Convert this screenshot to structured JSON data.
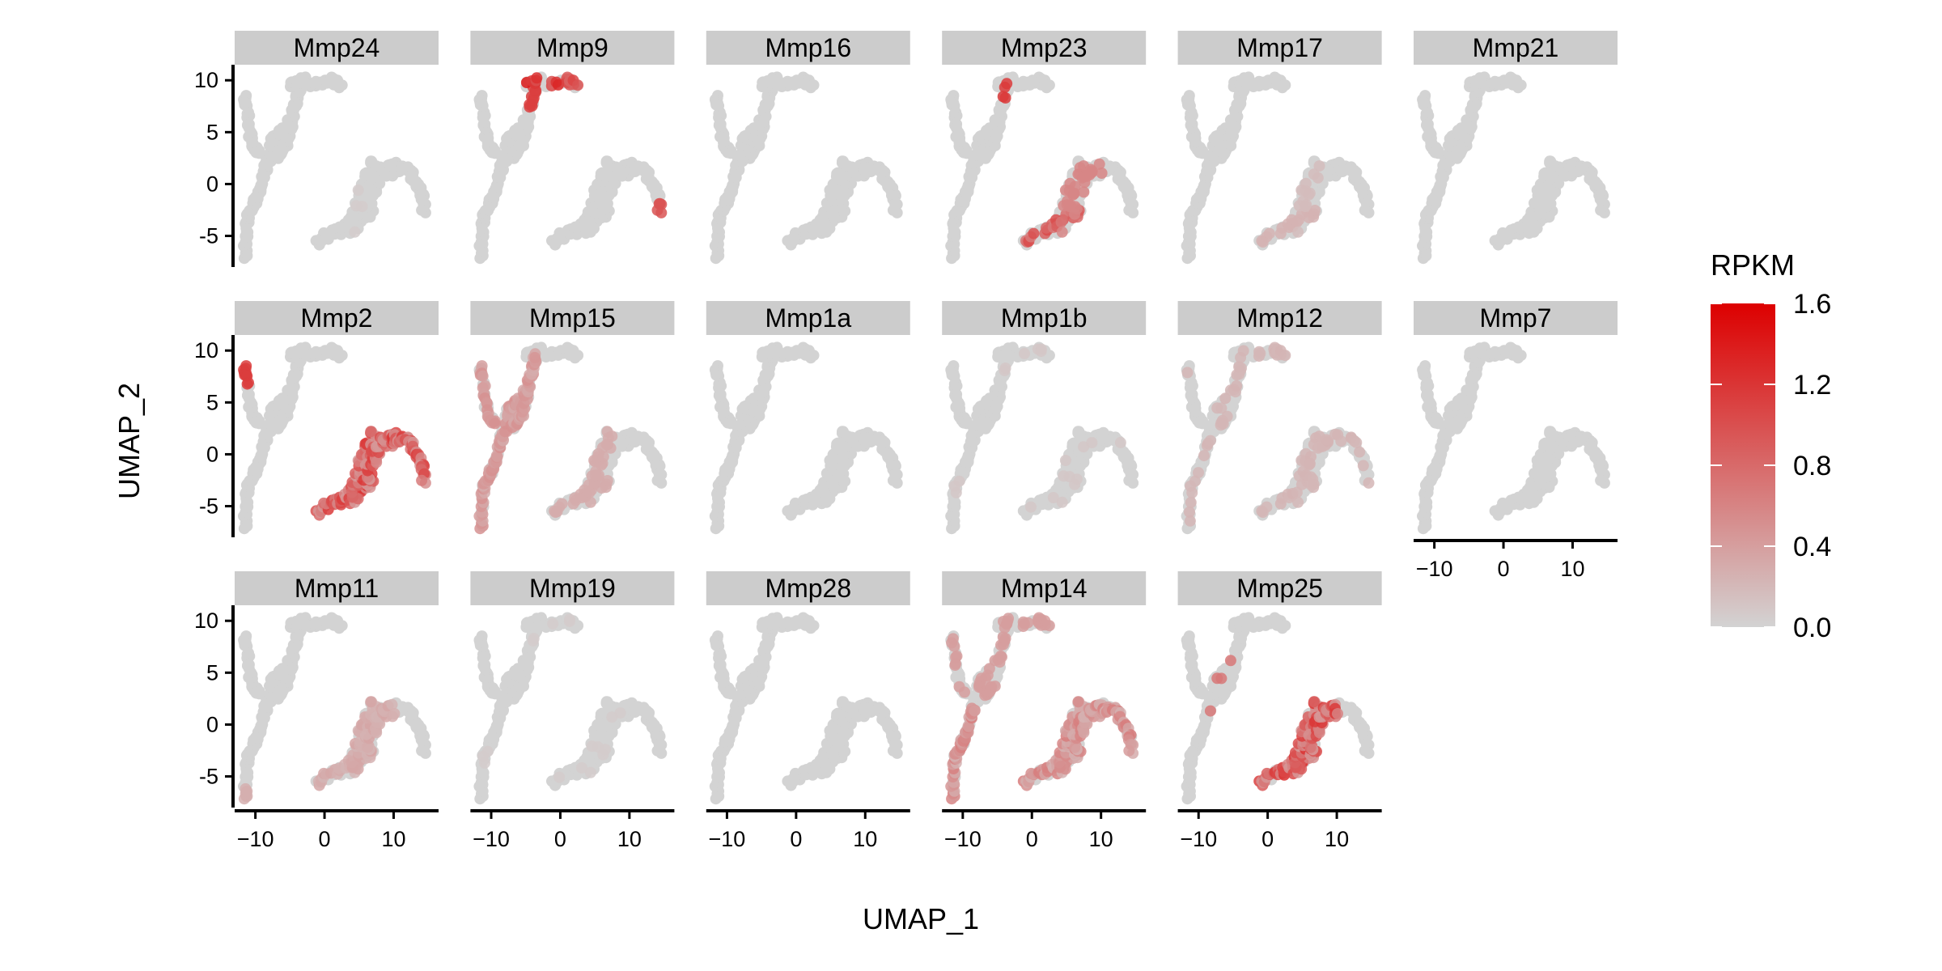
{
  "chart_data": {
    "type": "scatter",
    "subtype": "faceted UMAP feature plot",
    "title": "",
    "xlabel": "UMAP_1",
    "ylabel": "UMAP_2",
    "xlim": [
      -13,
      16.5
    ],
    "ylim": [
      -8,
      11.5
    ],
    "x_ticks": [
      -10,
      0,
      10
    ],
    "y_ticks": [
      -5,
      0,
      5,
      10
    ],
    "grid": false,
    "facet_columns": 6,
    "facets": [
      "Mmp24",
      "Mmp9",
      "Mmp16",
      "Mmp23",
      "Mmp17",
      "Mmp21",
      "Mmp2",
      "Mmp15",
      "Mmp1a",
      "Mmp1b",
      "Mmp12",
      "Mmp7",
      "Mmp11",
      "Mmp19",
      "Mmp28",
      "Mmp14",
      "Mmp25"
    ],
    "facet_max_rpkm": [
      0.1,
      1.6,
      0.05,
      1.3,
      0.35,
      0.05,
      1.2,
      0.6,
      0.1,
      0.15,
      0.35,
      0.05,
      0.45,
      0.1,
      0.05,
      0.8,
      1.4
    ],
    "colorbar": {
      "title": "RPKM",
      "min": 0.0,
      "max": 1.6,
      "ticks": [
        "0.0",
        "0.4",
        "0.8",
        "1.2",
        "1.6"
      ],
      "low_color": "#d3d3d3",
      "high_color": "#dd0000"
    },
    "legend_position": "right"
  }
}
